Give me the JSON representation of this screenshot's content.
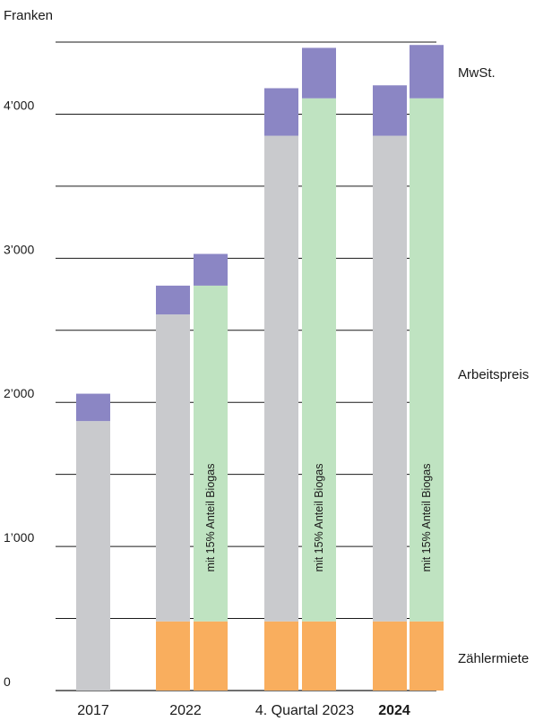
{
  "chart_data": {
    "type": "bar",
    "y_unit_label": "Franken",
    "ylim": [
      0,
      4500
    ],
    "y_ticks": [
      0,
      1000,
      2000,
      3000,
      4000
    ],
    "y_tick_labels": [
      "0",
      "1’000",
      "2’000",
      "3’000",
      "4’000"
    ],
    "grid": true,
    "grid_step": 500,
    "categories": [
      {
        "label": "2017",
        "bold": false
      },
      {
        "label": "2022",
        "bold": false
      },
      {
        "label": "4. Quartal 2023",
        "bold": false
      },
      {
        "label": "2024",
        "bold": true
      }
    ],
    "series": [
      {
        "name": "Zählermiete",
        "key": "zaehlermiete",
        "color": "#f9ae5e"
      },
      {
        "name": "Arbeitspreis",
        "key": "arbeitspreis",
        "color": "#c9cacd",
        "biogas_color": "#bfe3c1"
      },
      {
        "name": "MwSt.",
        "key": "mwst",
        "color": "#8b86c4"
      }
    ],
    "bars": [
      {
        "category": "2017",
        "biogas": false,
        "zaehlermiete": 0,
        "arbeitspreis": 1870,
        "mwst": 190
      },
      {
        "category": "2022",
        "biogas": false,
        "zaehlermiete": 480,
        "arbeitspreis": 2130,
        "mwst": 200
      },
      {
        "category": "2022",
        "biogas": true,
        "zaehlermiete": 480,
        "arbeitspreis": 2330,
        "mwst": 220,
        "note": "mit 15% Anteil Biogas"
      },
      {
        "category": "4. Quartal 2023",
        "biogas": false,
        "zaehlermiete": 480,
        "arbeitspreis": 3370,
        "mwst": 330
      },
      {
        "category": "4. Quartal 2023",
        "biogas": true,
        "zaehlermiete": 480,
        "arbeitspreis": 3630,
        "mwst": 350,
        "note": "mit 15% Anteil Biogas"
      },
      {
        "category": "2024",
        "biogas": false,
        "zaehlermiete": 480,
        "arbeitspreis": 3370,
        "mwst": 350
      },
      {
        "category": "2024",
        "biogas": true,
        "zaehlermiete": 480,
        "arbeitspreis": 3630,
        "mwst": 370,
        "note": "mit 15% Anteil Biogas"
      }
    ]
  }
}
